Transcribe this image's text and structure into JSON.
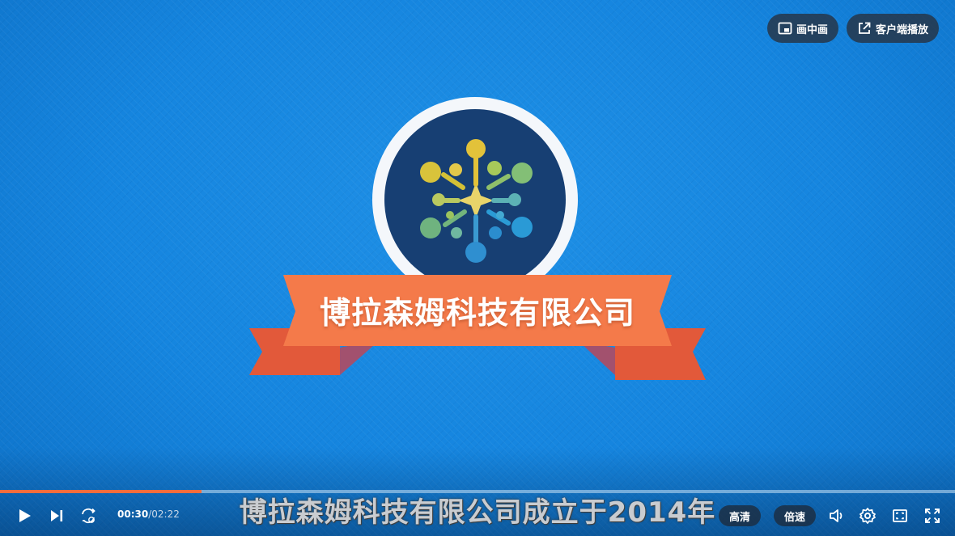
{
  "top_buttons": {
    "pip_label": "画中画",
    "client_play_label": "客户端播放"
  },
  "video": {
    "ribbon_text": "博拉森姆科技有限公司",
    "subtitle": "博拉森姆科技有限公司成立于2014年"
  },
  "controls": {
    "current_time": "00:30",
    "separator": "/",
    "duration": "02:22",
    "progress_fraction": 0.211,
    "quality_label": "高清",
    "speed_label": "倍速"
  },
  "colors": {
    "progress_played": "#f26d3d",
    "ribbon": "#f47a4a",
    "logo_bg": "#173f73"
  },
  "icons": [
    "pip-icon",
    "external-link-icon",
    "play-icon",
    "next-icon",
    "loop-icon",
    "volume-icon",
    "settings-icon",
    "fullscreen-window-icon",
    "fullscreen-icon"
  ]
}
